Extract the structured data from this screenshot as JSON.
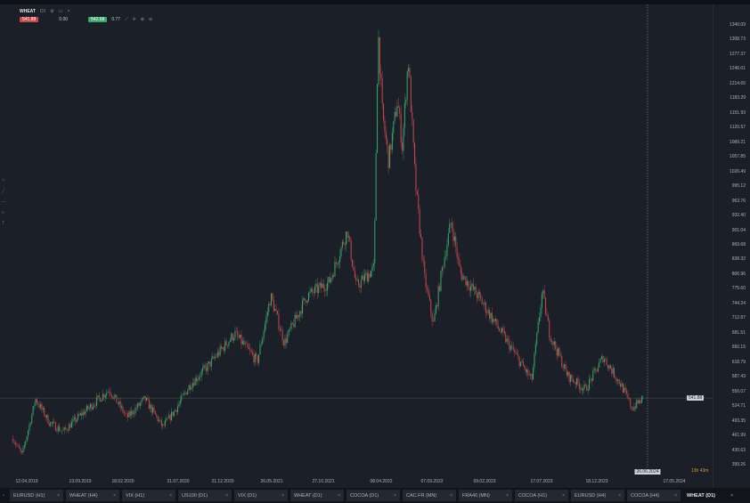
{
  "toolbar": {
    "symbol": "WHEAT",
    "timeframe": "D1",
    "sell_price": "541.88",
    "volume": "0.00",
    "buy_price": "542.68",
    "spread": "0.77",
    "icons": [
      "settings-icon",
      "chart-type-icon",
      "close-icon",
      "line-tool-icon",
      "crosshair-icon",
      "zoom-in-icon",
      "zoom-out-icon"
    ]
  },
  "tabs": [
    {
      "label": "EURUSD (H1)"
    },
    {
      "label": "WHEAT (H4)"
    },
    {
      "label": "VIX (H1)"
    },
    {
      "label": "US100 (D1)"
    },
    {
      "label": "VIX (D1)"
    },
    {
      "label": "WHEAT (D1)"
    },
    {
      "label": "COCOA (D1)"
    },
    {
      "label": "CAC.FR (MN)"
    },
    {
      "label": "FRA40 (MN)"
    },
    {
      "label": "COCOA (H1)"
    },
    {
      "label": "EURUSD (H4)"
    },
    {
      "label": "COCOA (H4)"
    },
    {
      "label": "WHEAT (D1)",
      "active": true
    }
  ],
  "countdown": "13h 43m",
  "crosshair_date": "26.06.2024",
  "colors": {
    "background": "#1b2028",
    "up": "#3aa76d",
    "down": "#c9484c",
    "price_line": "#4a5a4a"
  },
  "chart_data": {
    "type": "candlestick",
    "x_tick_labels": [
      "12.04.2019",
      "13.09.2019",
      "18.02.2020",
      "21.07.2020",
      "21.12.2020",
      "26.05.2021",
      "27.10.2021",
      "08.04.2022",
      "07.09.2022",
      "09.02.2023",
      "17.07.2023",
      "18.12.2023",
      "17.05.2024"
    ],
    "y_tick_labels": [
      "1340.09",
      "1308.73",
      "1277.37",
      "1246.01",
      "1214.65",
      "1183.29",
      "1151.93",
      "1120.57",
      "1089.21",
      "1057.85",
      "1026.49",
      "995.12",
      "963.76",
      "932.40",
      "901.04",
      "869.68",
      "838.32",
      "806.96",
      "775.60",
      "744.24",
      "712.87",
      "681.51",
      "650.15",
      "618.79",
      "587.43",
      "556.07",
      "524.71",
      "493.35",
      "461.99",
      "430.63",
      "399.26"
    ],
    "ylim": [
      380,
      1360
    ],
    "xlim": [
      "2019-02-20",
      "2024-07-20"
    ],
    "current_price": "541.88",
    "grid": false,
    "close_path": [
      [
        "2019-03-02",
        455
      ],
      [
        "2019-03-29",
        420
      ],
      [
        "2019-05-09",
        540
      ],
      [
        "2019-06-19",
        490
      ],
      [
        "2019-07-31",
        470
      ],
      [
        "2019-09-13",
        500
      ],
      [
        "2019-12-17",
        560
      ],
      [
        "2020-02-09",
        500
      ],
      [
        "2020-04-03",
        540
      ],
      [
        "2020-05-27",
        480
      ],
      [
        "2020-07-07",
        520
      ],
      [
        "2020-08-17",
        570
      ],
      [
        "2020-10-10",
        610
      ],
      [
        "2020-12-30",
        680
      ],
      [
        "2021-03-08",
        620
      ],
      [
        "2021-04-18",
        760
      ],
      [
        "2021-05-29",
        660
      ],
      [
        "2021-08-05",
        760
      ],
      [
        "2021-10-12",
        790
      ],
      [
        "2021-12-05",
        900
      ],
      [
        "2022-01-01",
        780
      ],
      [
        "2022-02-24",
        820
      ],
      [
        "2022-03-08",
        1330
      ],
      [
        "2022-03-21",
        1150
      ],
      [
        "2022-04-09",
        1050
      ],
      [
        "2022-05-06",
        1180
      ],
      [
        "2022-05-20",
        1080
      ],
      [
        "2022-06-07",
        1270
      ],
      [
        "2022-06-29",
        1000
      ],
      [
        "2022-07-26",
        800
      ],
      [
        "2022-08-22",
        700
      ],
      [
        "2022-09-18",
        820
      ],
      [
        "2022-10-15",
        920
      ],
      [
        "2022-11-11",
        810
      ],
      [
        "2023-01-04",
        760
      ],
      [
        "2023-02-27",
        700
      ],
      [
        "2023-04-22",
        640
      ],
      [
        "2023-06-15",
        580
      ],
      [
        "2023-07-17",
        770
      ],
      [
        "2023-08-08",
        680
      ],
      [
        "2023-10-01",
        590
      ],
      [
        "2023-11-24",
        560
      ],
      [
        "2024-01-17",
        630
      ],
      [
        "2024-03-11",
        570
      ],
      [
        "2024-04-13",
        520
      ],
      [
        "2024-05-18",
        541.88
      ]
    ]
  }
}
